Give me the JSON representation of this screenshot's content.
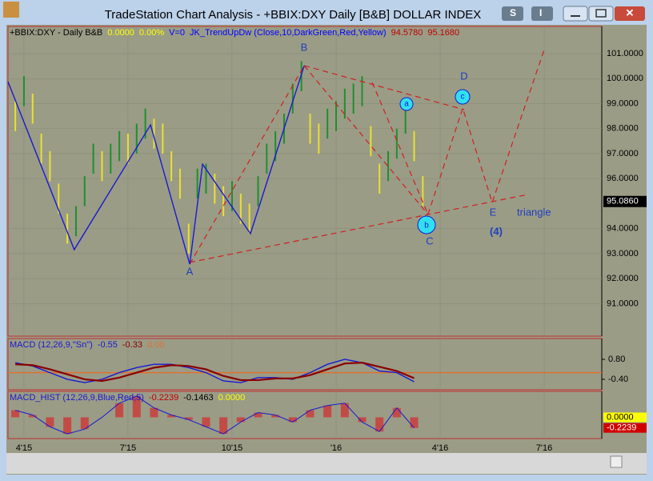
{
  "window": {
    "title": "TradeStation Chart Analysis - +BBIX:DXY Daily [B&B] DOLLAR INDEX",
    "buttons": [
      "S",
      "I"
    ]
  },
  "chart_data": [
    {
      "type": "ohlc",
      "header": [
        {
          "text": "+BBIX:DXY - Daily  B&B",
          "color": "#000000"
        },
        {
          "text": "0.0000",
          "color": "#ffff00"
        },
        {
          "text": "0.00%",
          "color": "#ffff00"
        },
        {
          "text": "V=0",
          "color": "#0000ff"
        },
        {
          "text": "JK_TrendUpDw (Close,10,DarkGreen,Red,Yellow)",
          "color": "#0000ff"
        },
        {
          "text": "94.5780",
          "color": "#c00000"
        },
        {
          "text": "95.1680",
          "color": "#c00000"
        }
      ],
      "x": [
        -0.25,
        0,
        0.25,
        0.5,
        0.75,
        1,
        1.25,
        1.5,
        1.75,
        2,
        2.25,
        2.5,
        2.75,
        3,
        3.25,
        3.5,
        3.75,
        4,
        4.25,
        4.5,
        4.75,
        5,
        5.25,
        5.5,
        5.75,
        6,
        6.25,
        6.5,
        6.75,
        7,
        7.25,
        7.5,
        7.75,
        8,
        8.25,
        8.5,
        8.75,
        9,
        9.25,
        9.5,
        9.75,
        10,
        10.25,
        10.5,
        10.75,
        11,
        11.25,
        11.5
      ],
      "high": [
        99.1,
        100.1,
        99.4,
        97.8,
        97.1,
        95.8,
        94.6,
        94.9,
        96.1,
        97.4,
        97.1,
        97.4,
        97.9,
        97.8,
        98.2,
        98.8,
        98.4,
        98.2,
        97.1,
        96.4,
        94.2,
        96.4,
        96.6,
        96.2,
        95.7,
        95.9,
        95.4,
        95,
        96.1,
        97.4,
        97.9,
        98.6,
        99.8,
        100.7,
        98.6,
        98.2,
        98.8,
        99.1,
        99.6,
        99.8,
        100.1,
        98.1,
        96.6,
        97.1,
        98,
        99,
        97.9,
        96.1
      ],
      "low": [
        97.9,
        98.9,
        98.2,
        96.6,
        95.9,
        94.6,
        93.4,
        93.7,
        94.9,
        96.2,
        95.9,
        96.2,
        96.7,
        96.6,
        97,
        97.6,
        97.2,
        97,
        95.9,
        95.2,
        93,
        95.2,
        95.4,
        95,
        94.5,
        94.7,
        94.2,
        93.8,
        94.9,
        96.2,
        96.7,
        97.4,
        98.6,
        99.5,
        97.4,
        97,
        97.6,
        97.9,
        98.4,
        98.6,
        98.9,
        96.9,
        95.4,
        95.9,
        96.8,
        97.8,
        96.7,
        94.9
      ],
      "up_color": "#1f8f2f",
      "down_color": "#e8e030",
      "wave": {
        "name": "wave",
        "color": "#1a1ad0",
        "x": [
          -0.46,
          1.45,
          3.65,
          4.78,
          5.15,
          6.53,
          8.08
        ],
        "y": [
          99.88,
          93.16,
          98.15,
          92.58,
          96.58,
          93.8,
          100.52
        ]
      },
      "projection_color": "#d02020",
      "projections": [
        {
          "x": [
            4.78,
            8.08
          ],
          "y": [
            92.58,
            100.52
          ]
        },
        {
          "x": [
            4.78,
            14.54
          ],
          "y": [
            92.65,
            95.37
          ]
        },
        {
          "x": [
            8.08,
            12.69
          ],
          "y": [
            100.52,
            98.76
          ]
        },
        {
          "x": [
            8.08,
            11.65
          ],
          "y": [
            100.52,
            94.57
          ]
        },
        {
          "x": [
            10.04,
            11.65
          ],
          "y": [
            99.85,
            94.57
          ]
        },
        {
          "x": [
            11.65,
            12.65,
            13.5,
            15
          ],
          "y": [
            94.57,
            98.82,
            95.05,
            101.16
          ]
        }
      ],
      "wave_labels": [
        "A",
        "B",
        "C",
        "D",
        "E",
        "triangle",
        "(4)"
      ],
      "circle_labels": [
        "a",
        "b",
        "c"
      ],
      "last_price": {
        "value": 95.086,
        "label": "95.0860"
      },
      "xlim": [
        -0.46,
        16.66
      ],
      "ylim": [
        89.7,
        102.09
      ],
      "xticks": [
        {
          "value": 0,
          "label": "4'15"
        },
        {
          "value": 3,
          "label": "7'15"
        },
        {
          "value": 6,
          "label": "10'15"
        },
        {
          "value": 9,
          "label": "'16"
        },
        {
          "value": 12,
          "label": "4'16"
        },
        {
          "value": 15,
          "label": "7'16"
        }
      ],
      "yticks": [
        {
          "value": 101,
          "label": "101.0000"
        },
        {
          "value": 100,
          "label": "100.0000"
        },
        {
          "value": 99,
          "label": "99.0000"
        },
        {
          "value": 98,
          "label": "98.0000"
        },
        {
          "value": 97,
          "label": "97.0000"
        },
        {
          "value": 96,
          "label": "96.0000"
        },
        {
          "value": 94,
          "label": "94.0000"
        },
        {
          "value": 93,
          "label": "93.0000"
        },
        {
          "value": 92,
          "label": "92.0000"
        },
        {
          "value": 91,
          "label": "91.0000"
        }
      ],
      "grid": true
    },
    {
      "type": "line",
      "header": [
        {
          "text": "MACD (12,26,9,\"Sn\")",
          "color": "#1a1ad0"
        },
        {
          "text": "-0.55",
          "color": "#1a1ad0"
        },
        {
          "text": "-0.33",
          "color": "#8b0000"
        },
        {
          "text": "0.00",
          "color": "#e07030"
        }
      ],
      "x": [
        -0.25,
        0.25,
        0.75,
        1.25,
        1.75,
        2.25,
        2.75,
        3.25,
        3.75,
        4.25,
        4.75,
        5.25,
        5.75,
        6.25,
        6.75,
        7.25,
        7.75,
        8.25,
        8.75,
        9.25,
        9.75,
        10.25,
        10.75,
        11.25
      ],
      "series": [
        {
          "name": "MACD",
          "color": "#1a1ad0",
          "values": [
            0.6,
            0.4,
            0,
            -0.4,
            -0.6,
            -0.4,
            0,
            0.3,
            0.5,
            0.5,
            0.3,
            0,
            -0.5,
            -0.6,
            -0.3,
            -0.3,
            -0.4,
            0,
            0.5,
            0.8,
            0.6,
            0.1,
            0,
            -0.55
          ]
        },
        {
          "name": "Signal",
          "color": "#8b0000",
          "values": [
            0.5,
            0.45,
            0.2,
            -0.1,
            -0.4,
            -0.5,
            -0.3,
            0,
            0.3,
            0.45,
            0.4,
            0.2,
            -0.2,
            -0.45,
            -0.45,
            -0.35,
            -0.35,
            -0.15,
            0.2,
            0.55,
            0.6,
            0.35,
            0.1,
            -0.33
          ]
        }
      ],
      "zero_color": "#e07030",
      "xlim": [
        -0.46,
        16.66
      ],
      "ylim": [
        -1.03,
        2.05
      ],
      "yticks": [
        {
          "value": 0.8,
          "label": "0.80"
        },
        {
          "value": -0.4,
          "label": "-0.40"
        }
      ]
    },
    {
      "type": "histogram",
      "header": [
        {
          "text": "MACD_HIST (12,26,9,Blue,Red,5)",
          "color": "#1a1ad0"
        },
        {
          "text": "-0.2239",
          "color": "#c00000"
        },
        {
          "text": "-0.1463",
          "color": "#000000"
        },
        {
          "text": "0.0000",
          "color": "#ffff00"
        }
      ],
      "x": [
        -0.25,
        0.25,
        0.75,
        1.25,
        1.75,
        2.25,
        2.75,
        3.25,
        3.75,
        4.25,
        4.75,
        5.25,
        5.75,
        6.25,
        6.75,
        7.25,
        7.75,
        8.25,
        8.75,
        9.25,
        9.75,
        10.25,
        10.75,
        11.25
      ],
      "values": [
        0.15,
        0.05,
        -0.2,
        -0.35,
        -0.25,
        0,
        0.3,
        0.45,
        0.2,
        0.05,
        -0.05,
        -0.2,
        -0.35,
        -0.1,
        0.1,
        0.05,
        -0.1,
        0.15,
        0.25,
        0.3,
        -0.1,
        -0.3,
        0.2,
        -0.2239
      ],
      "color": "#d03030",
      "line_color": "#1a1ad0",
      "xlim": [
        -0.46,
        16.66
      ],
      "ylim": [
        -0.45,
        0.55
      ],
      "yticks": [
        {
          "value": 0,
          "label": "0.0000",
          "color": "#ffff00"
        },
        {
          "value": -0.2239,
          "label": "-0.2239",
          "color": "#d00000"
        }
      ]
    }
  ]
}
